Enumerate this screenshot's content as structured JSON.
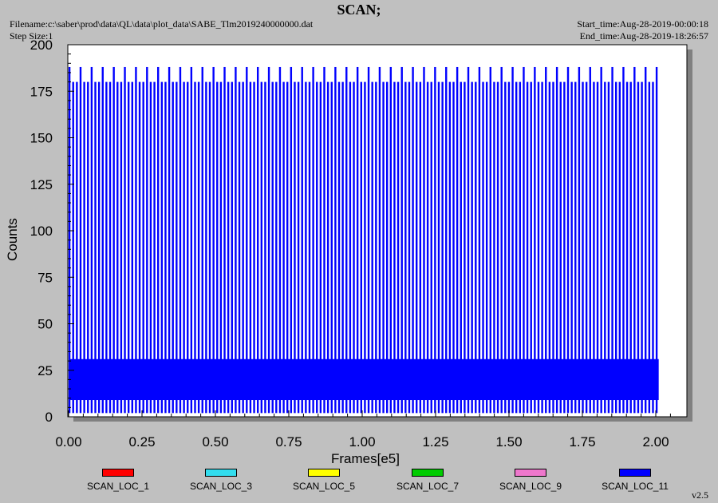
{
  "header": {
    "title": "SCAN;",
    "filename": "Filename:c:\\saber\\prod\\data\\QL\\data\\plot_data\\SABE_Tlm2019240000000.dat",
    "step_size": "Step Size:1",
    "start_time": "Start_time:Aug-28-2019-00:00:18",
    "end_time": "End_time:Aug-28-2019-18:26:57"
  },
  "version": "v2.5",
  "chart_data": {
    "type": "line",
    "xlabel": "Frames[e5]",
    "ylabel": "Counts",
    "xlim": [
      0,
      2.1
    ],
    "ylim": [
      0,
      200
    ],
    "x_ticks": [
      "0.00",
      "0.25",
      "0.50",
      "0.75",
      "1.00",
      "1.25",
      "1.50",
      "1.75",
      "2.00"
    ],
    "y_ticks": [
      "0",
      "25",
      "50",
      "75",
      "100",
      "125",
      "150",
      "175",
      "200"
    ],
    "x_end": 2.01,
    "baseline_band": [
      9,
      31
    ],
    "spike_tall": 188,
    "spike_short": 180,
    "spike_floor": 2,
    "spike_count": 160,
    "colors": {
      "plot_background": "#ffffff",
      "frame_background": "#c0c0c0",
      "dominant_series": "#0000ff"
    },
    "series": [
      {
        "name": "SCAN_LOC_1",
        "color": "#ff0000"
      },
      {
        "name": "SCAN_LOC_3",
        "color": "#33ddee"
      },
      {
        "name": "SCAN_LOC_5",
        "color": "#ffff00"
      },
      {
        "name": "SCAN_LOC_7",
        "color": "#00cc00"
      },
      {
        "name": "SCAN_LOC_9",
        "color": "#ee77cc"
      },
      {
        "name": "SCAN_LOC_11",
        "color": "#0000ff"
      }
    ]
  }
}
